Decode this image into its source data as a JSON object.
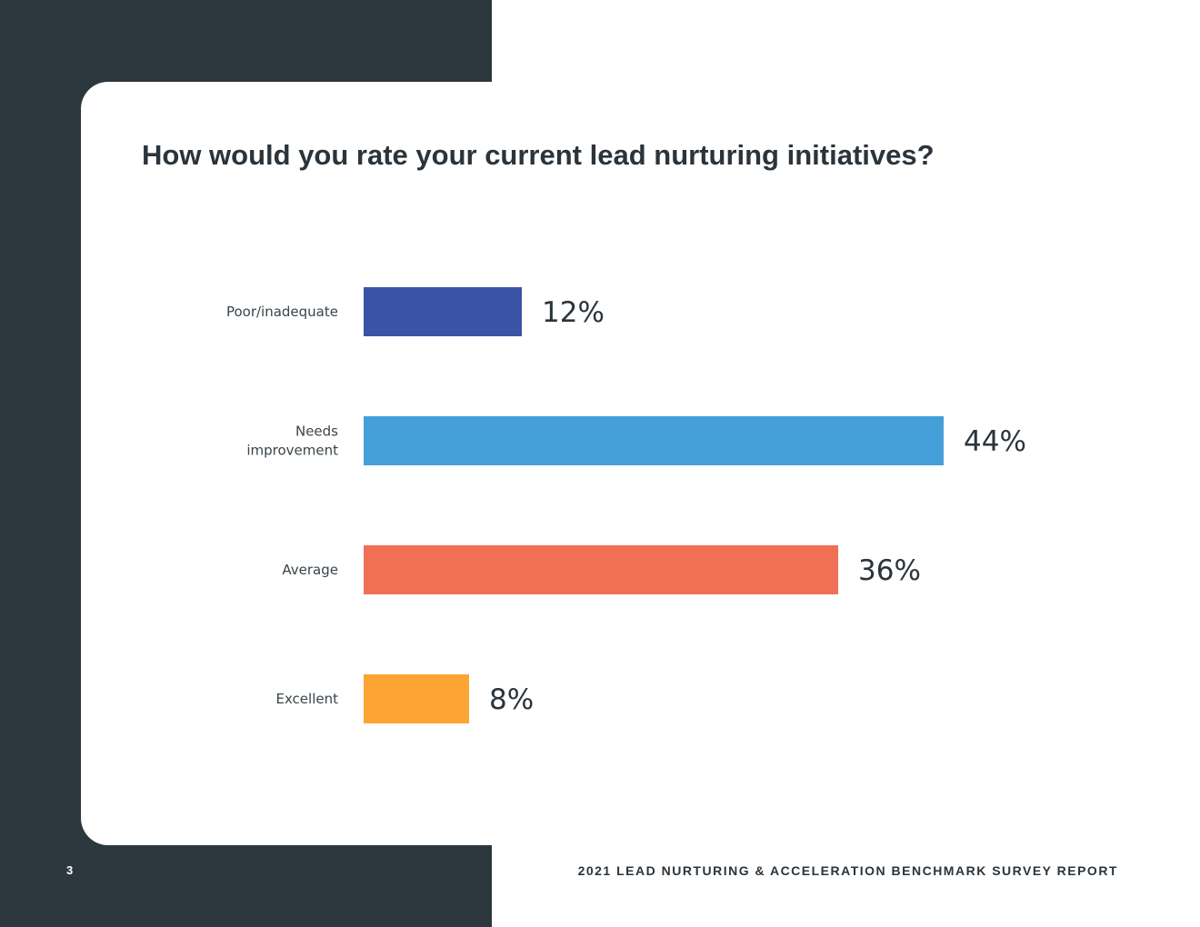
{
  "title": "How would you rate your current lead nurturing initiatives?",
  "footer": {
    "page_number": "3",
    "report_title": "2021 LEAD NURTURING & ACCELERATION BENCHMARK SURVEY REPORT"
  },
  "colors": {
    "dark_panel": "#2d373e",
    "text": "#2b343b"
  },
  "chart_data": {
    "type": "bar",
    "orientation": "horizontal",
    "title": "How would you rate your current lead nurturing initiatives?",
    "categories": [
      [
        "Poor/inadequate"
      ],
      [
        "Needs",
        "improvement"
      ],
      [
        "Average"
      ],
      [
        "Excellent"
      ]
    ],
    "values": [
      12,
      44,
      36,
      8
    ],
    "value_labels": [
      "12%",
      "44%",
      "36%",
      "8%"
    ],
    "unit": "%",
    "colors": [
      "#3a53a4",
      "#449fd8",
      "#f07055",
      "#fda533"
    ],
    "xlim": [
      0,
      44
    ],
    "grid": false,
    "legend": "none"
  }
}
